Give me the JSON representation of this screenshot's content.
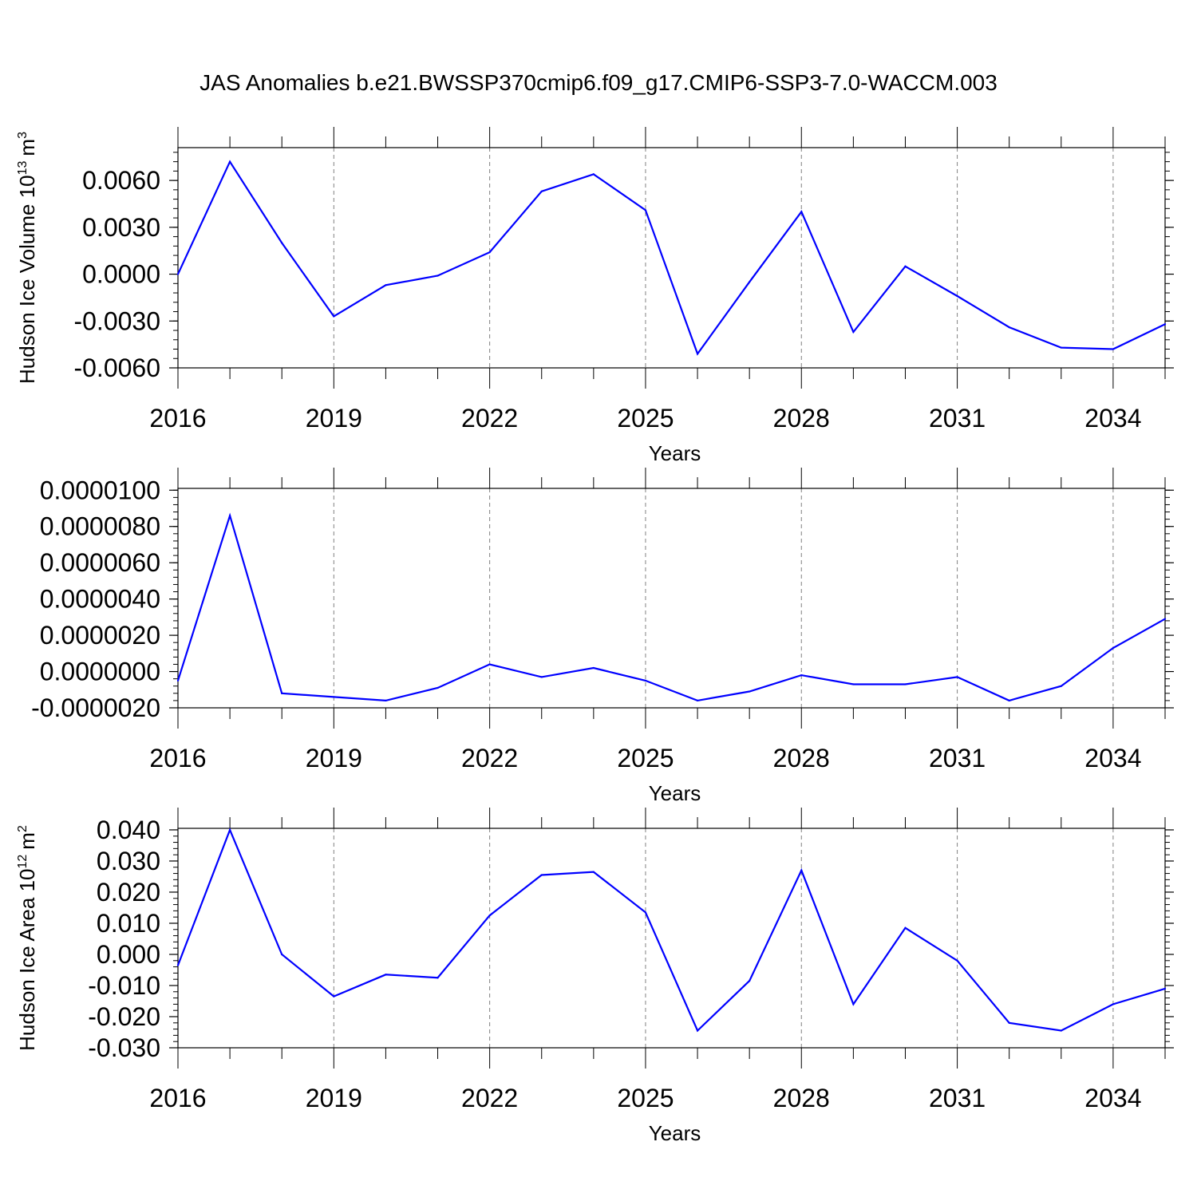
{
  "title": "JAS Anomalies b.e21.BWSSP370cmip6.f09_g17.CMIP6-SSP3-7.0-WACCM.003",
  "colors": {
    "series": "#0000ff",
    "axis": "#000000",
    "grid": "#808080"
  },
  "chart_data": [
    {
      "type": "line",
      "ylabel": "Hudson Ice Volume 10",
      "ylabel_sup": "13",
      "ylabel_unit": "m",
      "ylabel_unit_sup": "3",
      "xlabel": "Years",
      "xlim": [
        2016,
        2035
      ],
      "ylim": [
        -0.006,
        0.0081
      ],
      "yticks": [
        -0.006,
        -0.003,
        0.0,
        0.003,
        0.006
      ],
      "yticklabels": [
        "-0.0060",
        "-0.0030",
        "0.0000",
        "0.0030",
        "0.0060"
      ],
      "yminor": 0.0006,
      "xticks": [
        2016,
        2019,
        2022,
        2025,
        2028,
        2031,
        2034
      ],
      "xticklabels": [
        "2016",
        "2019",
        "2022",
        "2025",
        "2028",
        "2031",
        "2034"
      ],
      "grid": "x-dashed",
      "x": [
        2016,
        2017,
        2018,
        2019,
        2020,
        2021,
        2022,
        2023,
        2024,
        2025,
        2026,
        2027,
        2028,
        2029,
        2030,
        2031,
        2032,
        2033,
        2034,
        2035
      ],
      "values": [
        0.0,
        0.0072,
        0.002,
        -0.0027,
        -0.0007,
        -0.0001,
        0.0014,
        0.0053,
        0.0064,
        0.0041,
        -0.0051,
        -0.0005,
        0.004,
        -0.0037,
        0.0005,
        -0.0014,
        -0.0034,
        -0.0047,
        -0.0048,
        -0.0032
      ]
    },
    {
      "type": "line",
      "ylabel": "",
      "xlabel": "Years",
      "xlim": [
        2016,
        2035
      ],
      "ylim": [
        -2e-06,
        1.01e-05
      ],
      "yticks": [
        -2e-06,
        0.0,
        2e-06,
        4e-06,
        6e-06,
        8e-06,
        1e-05
      ],
      "yticklabels": [
        "-0.0000020",
        "0.0000000",
        "0.0000020",
        "0.0000040",
        "0.0000060",
        "0.0000080",
        "0.0000100"
      ],
      "yminor": 4e-07,
      "xticks": [
        2016,
        2019,
        2022,
        2025,
        2028,
        2031,
        2034
      ],
      "xticklabels": [
        "2016",
        "2019",
        "2022",
        "2025",
        "2028",
        "2031",
        "2034"
      ],
      "grid": "x-dashed",
      "x": [
        2016,
        2017,
        2018,
        2019,
        2020,
        2021,
        2022,
        2023,
        2024,
        2025,
        2026,
        2027,
        2028,
        2029,
        2030,
        2031,
        2032,
        2033,
        2034,
        2035
      ],
      "values": [
        -5e-07,
        8.6e-06,
        -1.2e-06,
        -1.4e-06,
        -1.6e-06,
        -9e-07,
        4e-07,
        -3e-07,
        2e-07,
        -5e-07,
        -1.6e-06,
        -1.1e-06,
        -2e-07,
        -7e-07,
        -7e-07,
        -3e-07,
        -1.6e-06,
        -8e-07,
        1.3e-06,
        2.9e-06
      ]
    },
    {
      "type": "line",
      "ylabel": "Hudson Ice Area 10",
      "ylabel_sup": "12",
      "ylabel_unit": "m",
      "ylabel_unit_sup": "2",
      "xlabel": "Years",
      "xlim": [
        2016,
        2035
      ],
      "ylim": [
        -0.03,
        0.0405
      ],
      "yticks": [
        -0.03,
        -0.02,
        -0.01,
        0.0,
        0.01,
        0.02,
        0.03,
        0.04
      ],
      "yticklabels": [
        "-0.030",
        "-0.020",
        "-0.010",
        "0.000",
        "0.010",
        "0.020",
        "0.030",
        "0.040"
      ],
      "yminor": 0.002,
      "xticks": [
        2016,
        2019,
        2022,
        2025,
        2028,
        2031,
        2034
      ],
      "xticklabels": [
        "2016",
        "2019",
        "2022",
        "2025",
        "2028",
        "2031",
        "2034"
      ],
      "grid": "x-dashed",
      "x": [
        2016,
        2017,
        2018,
        2019,
        2020,
        2021,
        2022,
        2023,
        2024,
        2025,
        2026,
        2027,
        2028,
        2029,
        2030,
        2031,
        2032,
        2033,
        2034,
        2035
      ],
      "values": [
        -0.0035,
        0.04,
        0.0,
        -0.0135,
        -0.0065,
        -0.0075,
        0.0125,
        0.0255,
        0.0265,
        0.0135,
        -0.0245,
        -0.0085,
        0.027,
        -0.016,
        0.0085,
        -0.002,
        -0.022,
        -0.0245,
        -0.016,
        -0.011
      ]
    }
  ]
}
